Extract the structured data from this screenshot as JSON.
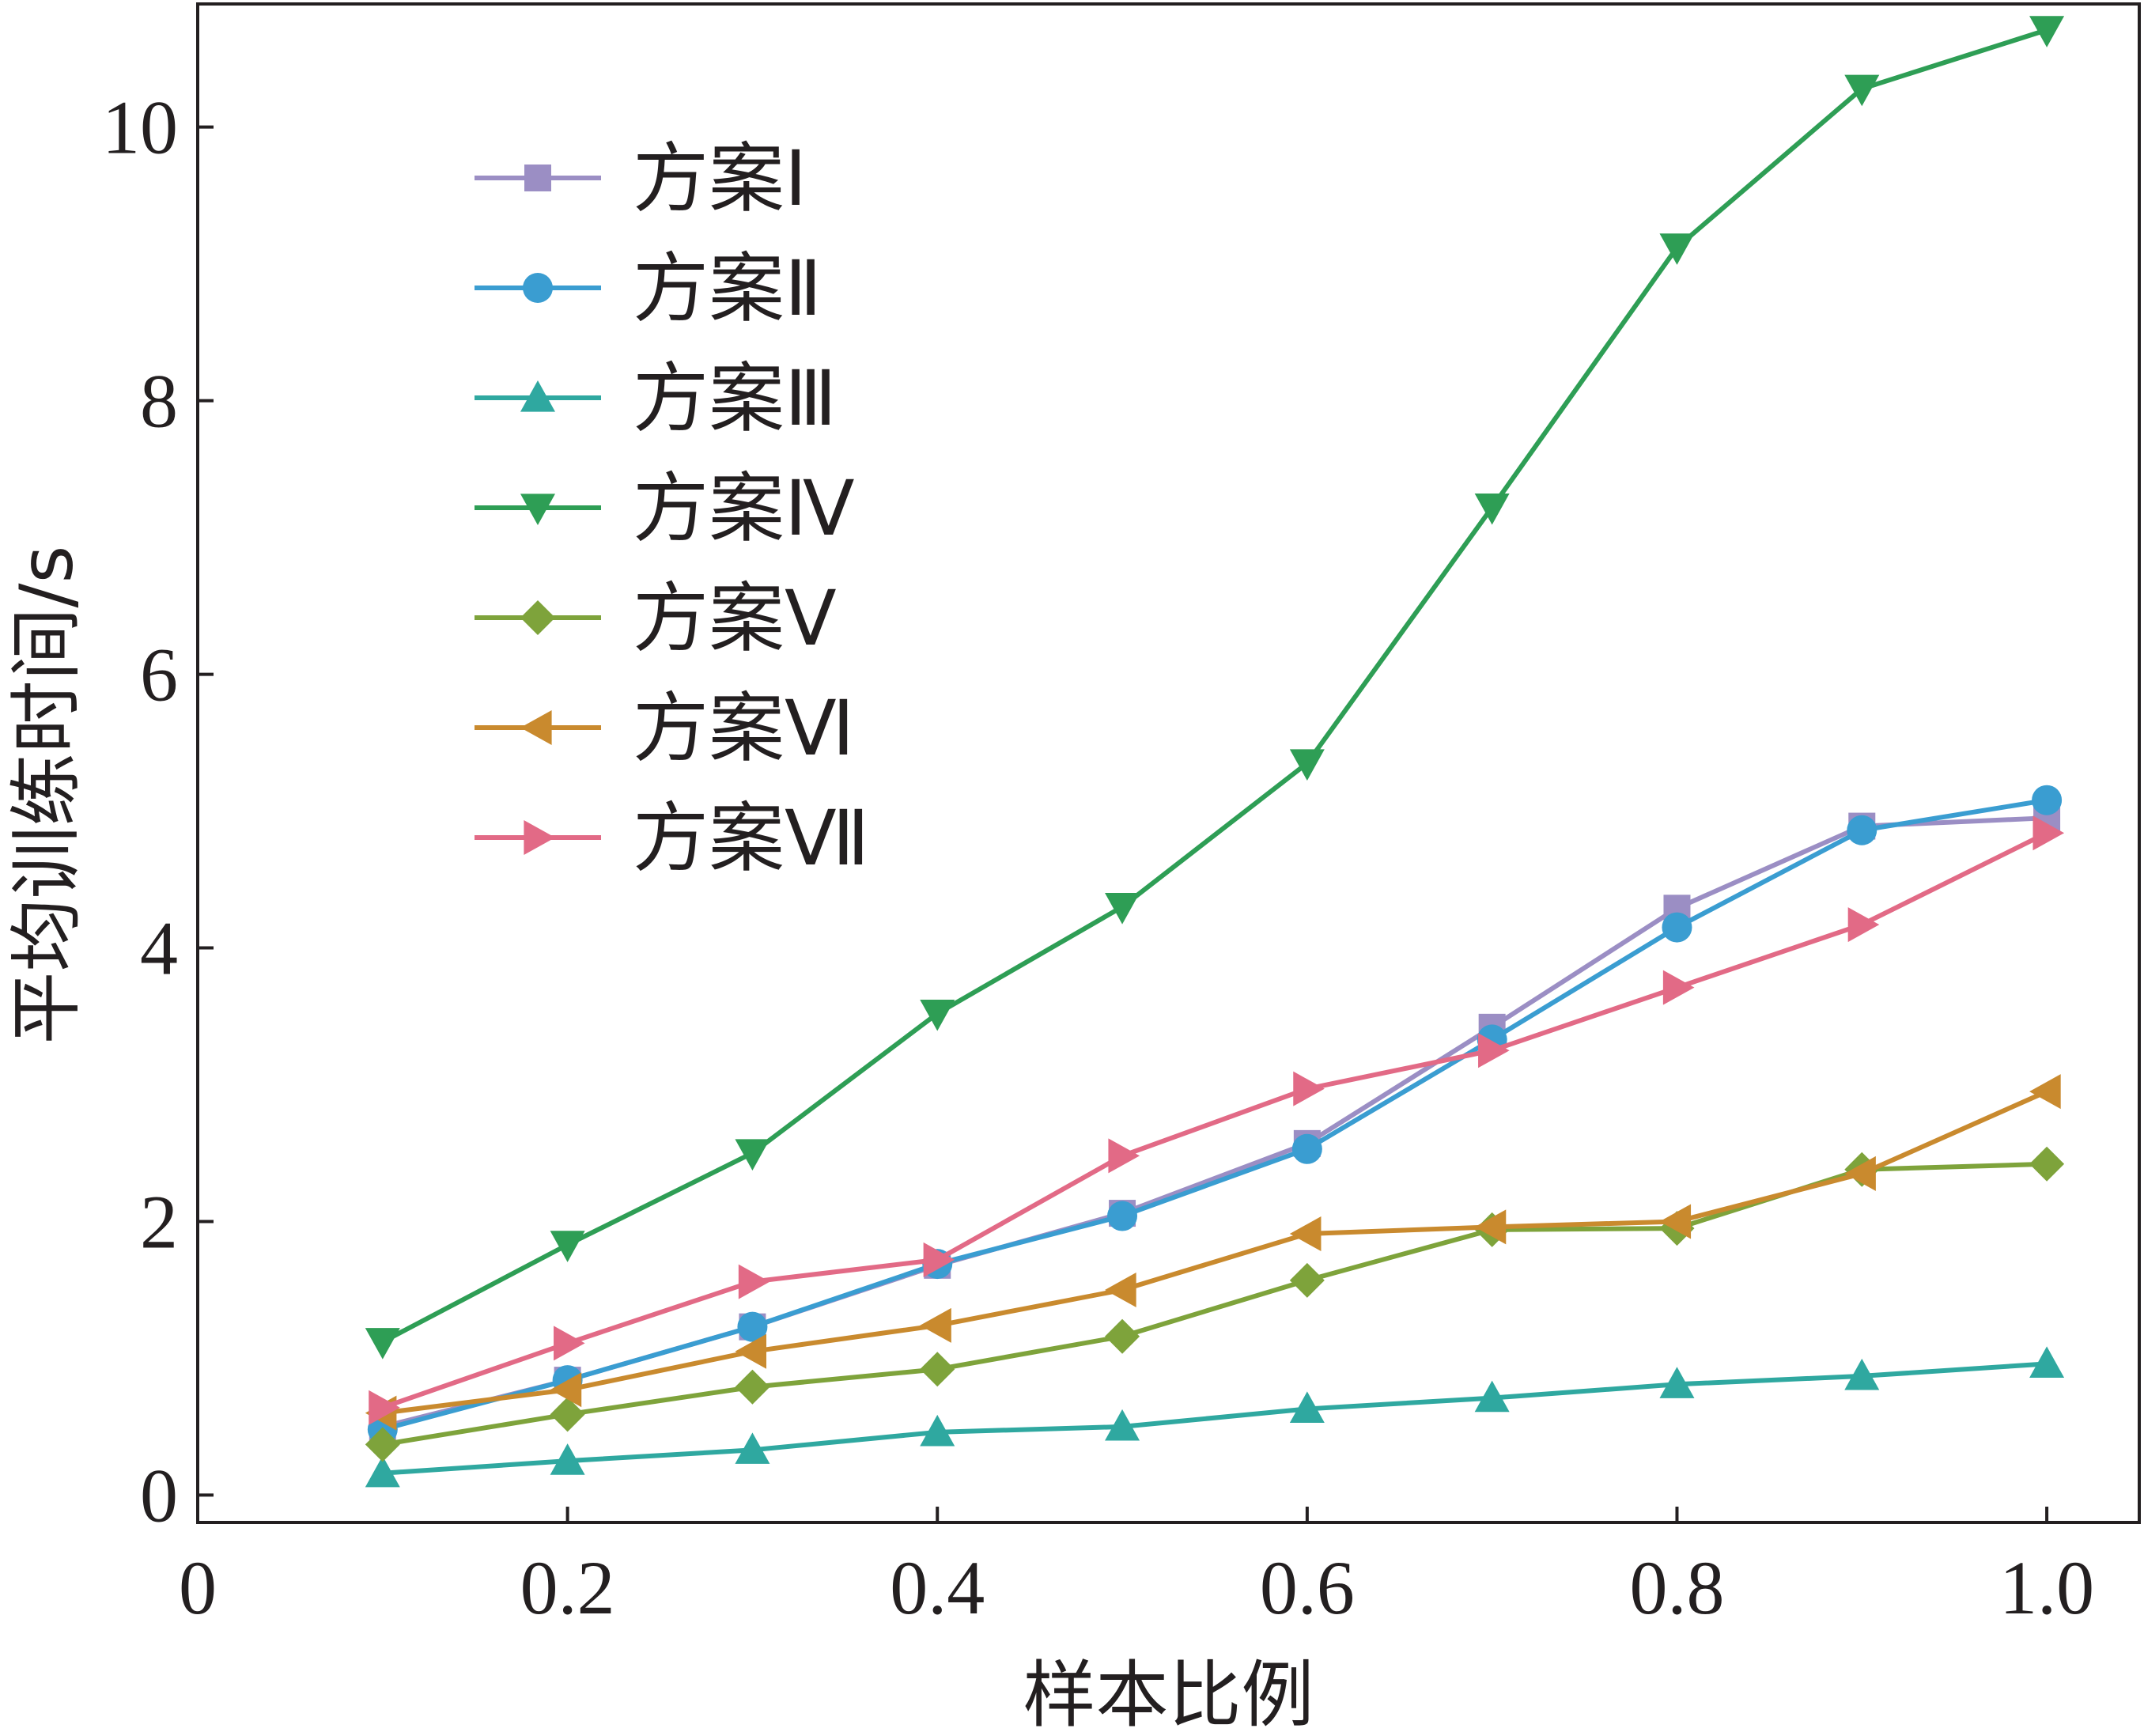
{
  "chart_data": {
    "type": "line",
    "xlabel": "样本比例",
    "ylabel": "平均训练时间/s",
    "xlim": [
      0,
      1.05
    ],
    "ylim": [
      -0.2,
      10.9
    ],
    "xticks": [
      0,
      0.2,
      0.4,
      0.6,
      0.8,
      1.0
    ],
    "xtick_labels": [
      "0",
      "0.2",
      "0.4",
      "0.6",
      "0.8",
      "1.0"
    ],
    "yticks": [
      0,
      2,
      4,
      6,
      8,
      10
    ],
    "ytick_labels": [
      "0",
      "2",
      "4",
      "6",
      "8",
      "10"
    ],
    "grid": false,
    "legend_position": "top-left",
    "x": [
      0.1,
      0.2,
      0.3,
      0.4,
      0.5,
      0.6,
      0.7,
      0.8,
      0.9,
      1.0
    ],
    "series": [
      {
        "name": "方案Ⅰ",
        "color": "#9b8ec4",
        "marker": "square",
        "values": [
          0.5,
          0.84,
          1.23,
          1.68,
          2.06,
          2.57,
          3.42,
          4.29,
          4.89,
          4.95
        ]
      },
      {
        "name": "方案Ⅱ",
        "color": "#3a9dd1",
        "marker": "circle",
        "values": [
          0.48,
          0.84,
          1.23,
          1.69,
          2.04,
          2.53,
          3.33,
          4.15,
          4.86,
          5.08
        ]
      },
      {
        "name": "方案Ⅲ",
        "color": "#2fa8a0",
        "marker": "triangle-up",
        "values": [
          0.16,
          0.25,
          0.33,
          0.46,
          0.5,
          0.63,
          0.71,
          0.81,
          0.87,
          0.96
        ]
      },
      {
        "name": "方案Ⅳ",
        "color": "#2e9e55",
        "marker": "triangle-down",
        "values": [
          1.12,
          1.83,
          2.5,
          3.52,
          4.3,
          5.35,
          7.22,
          9.12,
          10.28,
          10.71
        ]
      },
      {
        "name": "方案Ⅴ",
        "color": "#7ea33b",
        "marker": "diamond",
        "values": [
          0.37,
          0.59,
          0.79,
          0.92,
          1.16,
          1.57,
          1.94,
          1.95,
          2.38,
          2.42
        ]
      },
      {
        "name": "方案Ⅵ",
        "color": "#c98a2e",
        "marker": "triangle-left",
        "values": [
          0.6,
          0.77,
          1.05,
          1.24,
          1.5,
          1.91,
          1.96,
          2.0,
          2.35,
          2.95
        ]
      },
      {
        "name": "方案Ⅶ",
        "color": "#e26a86",
        "marker": "triangle-right",
        "values": [
          0.64,
          1.11,
          1.56,
          1.72,
          2.48,
          2.97,
          3.25,
          3.71,
          4.17,
          4.84
        ]
      }
    ]
  }
}
